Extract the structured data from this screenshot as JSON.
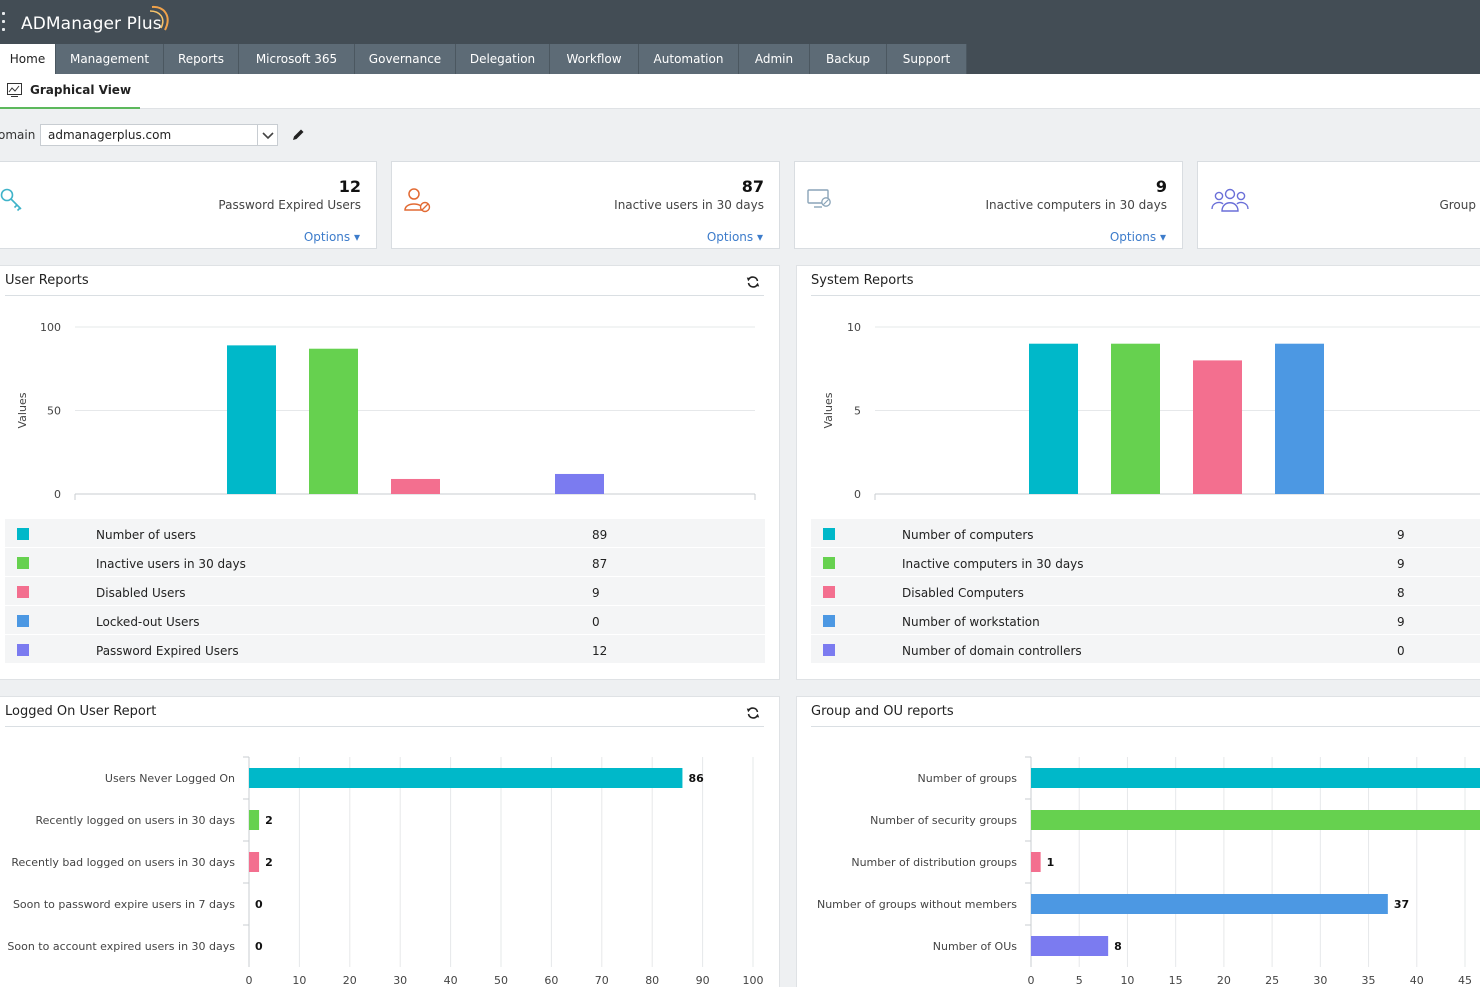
{
  "app": {
    "title": "ADManager Plus"
  },
  "nav": {
    "tabs": [
      {
        "label": "Home",
        "active": true
      },
      {
        "label": "Management"
      },
      {
        "label": "Reports"
      },
      {
        "label": "Microsoft 365"
      },
      {
        "label": "Governance"
      },
      {
        "label": "Delegation"
      },
      {
        "label": "Workflow"
      },
      {
        "label": "Automation"
      },
      {
        "label": "Admin"
      },
      {
        "label": "Backup"
      },
      {
        "label": "Support"
      }
    ]
  },
  "subnav": {
    "label": "Graphical View"
  },
  "domain": {
    "label": "omain",
    "value": "admanagerplus.com"
  },
  "cards": [
    {
      "value": "12",
      "label": "Password Expired Users",
      "options": "Options",
      "icon": "key-icon"
    },
    {
      "value": "87",
      "label": "Inactive users in 30 days",
      "options": "Options",
      "icon": "inactive-user-icon"
    },
    {
      "value": "9",
      "label": "Inactive computers in 30 days",
      "options": "Options",
      "icon": "inactive-computer-icon"
    },
    {
      "value": "",
      "label": "Group",
      "options": "",
      "icon": "group-icon"
    }
  ],
  "colors": {
    "teal": "#00b8c9",
    "green": "#66d14f",
    "pink": "#f36f8f",
    "blue": "#4c98e3",
    "purple": "#7b7bf0"
  },
  "user_reports": {
    "title": "User Reports",
    "legend": [
      {
        "label": "Number of users",
        "value": "89",
        "color": "#00b8c9"
      },
      {
        "label": "Inactive users in 30 days",
        "value": "87",
        "color": "#66d14f"
      },
      {
        "label": "Disabled Users",
        "value": "9",
        "color": "#f36f8f"
      },
      {
        "label": "Locked-out Users",
        "value": "0",
        "color": "#4c98e3"
      },
      {
        "label": "Password Expired Users",
        "value": "12",
        "color": "#7b7bf0"
      }
    ]
  },
  "system_reports": {
    "title": "System Reports",
    "legend": [
      {
        "label": "Number of computers",
        "value": "9",
        "color": "#00b8c9"
      },
      {
        "label": "Inactive computers in 30 days",
        "value": "9",
        "color": "#66d14f"
      },
      {
        "label": "Disabled Computers",
        "value": "8",
        "color": "#f36f8f"
      },
      {
        "label": "Number of workstation",
        "value": "9",
        "color": "#4c98e3"
      },
      {
        "label": "Number of domain controllers",
        "value": "0",
        "color": "#7b7bf0"
      }
    ]
  },
  "logged_on": {
    "title": "Logged On User Report"
  },
  "group_ou": {
    "title": "Group and OU reports"
  },
  "chart_data": [
    {
      "type": "bar",
      "title": "User Reports",
      "ylabel": "Values",
      "ylim": [
        0,
        100
      ],
      "yticks": [
        0,
        50,
        100
      ],
      "categories": [
        "Number of users",
        "Inactive users in 30 days",
        "Disabled Users",
        "Locked-out Users",
        "Password Expired Users"
      ],
      "values": [
        89,
        87,
        9,
        0,
        12
      ],
      "colors": [
        "#00b8c9",
        "#66d14f",
        "#f36f8f",
        "#4c98e3",
        "#7b7bf0"
      ],
      "grid": true
    },
    {
      "type": "bar",
      "title": "System Reports",
      "ylabel": "Values",
      "ylim": [
        0,
        10
      ],
      "yticks": [
        0,
        5,
        10
      ],
      "categories": [
        "Number of computers",
        "Inactive computers in 30 days",
        "Disabled Computers",
        "Number of workstation",
        "Number of domain controllers"
      ],
      "values": [
        9,
        9,
        8,
        9,
        0
      ],
      "colors": [
        "#00b8c9",
        "#66d14f",
        "#f36f8f",
        "#4c98e3",
        "#7b7bf0"
      ],
      "grid": true
    },
    {
      "type": "bar",
      "orientation": "horizontal",
      "title": "Logged On User Report",
      "xlim": [
        0,
        100
      ],
      "xticks": [
        0,
        10,
        20,
        30,
        40,
        50,
        60,
        70,
        80,
        90,
        100
      ],
      "categories": [
        "Users Never Logged On",
        "Recently logged on users in 30 days",
        "Recently bad logged on users in 30 days",
        "Soon to password expire users in 7 days",
        "Soon to account expired users in 30 days"
      ],
      "values": [
        86,
        2,
        2,
        0,
        0
      ],
      "colors": [
        "#00b8c9",
        "#66d14f",
        "#f36f8f",
        "#4c98e3",
        "#7b7bf0"
      ],
      "grid": true
    },
    {
      "type": "bar",
      "orientation": "horizontal",
      "title": "Group and OU reports",
      "xlim": [
        0,
        45
      ],
      "xticks": [
        0,
        5,
        10,
        15,
        20,
        25,
        30,
        35,
        40,
        45
      ],
      "categories": [
        "Number of groups",
        "Number of security groups",
        "Number of distribution groups",
        "Number of groups without members",
        "Number of OUs"
      ],
      "values": [
        null,
        null,
        1,
        37,
        8
      ],
      "colors": [
        "#00b8c9",
        "#66d14f",
        "#f36f8f",
        "#4c98e3",
        "#7b7bf0"
      ],
      "grid": true
    }
  ]
}
